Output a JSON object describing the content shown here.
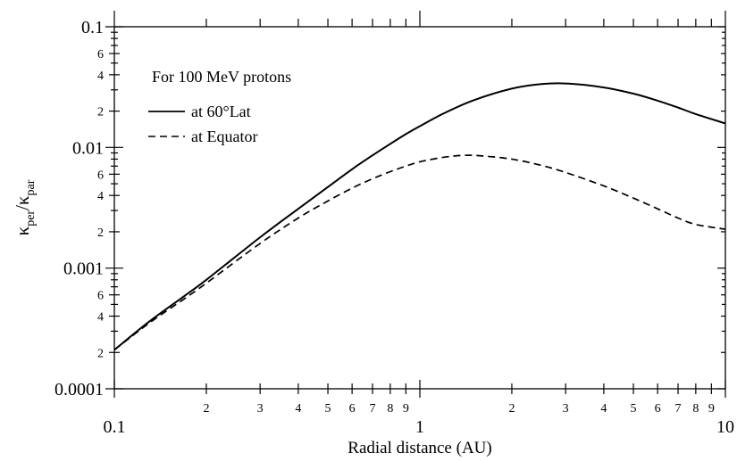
{
  "chart_data": {
    "type": "line",
    "title": "",
    "xlabel": "Radial distance (AU)",
    "ylabel_main": "κ",
    "ylabel_sub1": "per",
    "ylabel_slash": "/κ",
    "ylabel_sub2": "par",
    "xscale": "log",
    "yscale": "log",
    "xlim": [
      0.1,
      10
    ],
    "ylim": [
      0.0001,
      0.1
    ],
    "grid": false,
    "x_major_ticks": [
      {
        "value": 0.1,
        "label": "0.1"
      },
      {
        "value": 1,
        "label": "1"
      },
      {
        "value": 10,
        "label": "10"
      }
    ],
    "x_minor_ticks": [
      {
        "value": 0.2,
        "label": "2"
      },
      {
        "value": 0.3,
        "label": "3"
      },
      {
        "value": 0.4,
        "label": "4"
      },
      {
        "value": 0.5,
        "label": "5"
      },
      {
        "value": 0.6,
        "label": "6"
      },
      {
        "value": 0.7,
        "label": "7"
      },
      {
        "value": 0.8,
        "label": "8"
      },
      {
        "value": 0.9,
        "label": "9"
      },
      {
        "value": 2,
        "label": "2"
      },
      {
        "value": 3,
        "label": "3"
      },
      {
        "value": 4,
        "label": "4"
      },
      {
        "value": 5,
        "label": "5"
      },
      {
        "value": 6,
        "label": "6"
      },
      {
        "value": 7,
        "label": "7"
      },
      {
        "value": 8,
        "label": "8"
      },
      {
        "value": 9,
        "label": "9"
      }
    ],
    "y_major_ticks": [
      {
        "value": 0.0001,
        "label": "0.0001"
      },
      {
        "value": 0.001,
        "label": "0.001"
      },
      {
        "value": 0.01,
        "label": "0.01"
      },
      {
        "value": 0.1,
        "label": "0.1"
      }
    ],
    "y_minor_ticks": [
      {
        "value": 0.0002,
        "label": "2"
      },
      {
        "value": 0.0004,
        "label": "4"
      },
      {
        "value": 0.0006,
        "label": "6"
      },
      {
        "value": 0.002,
        "label": "2"
      },
      {
        "value": 0.004,
        "label": "4"
      },
      {
        "value": 0.006,
        "label": "6"
      },
      {
        "value": 0.02,
        "label": "2"
      },
      {
        "value": 0.04,
        "label": "4"
      },
      {
        "value": 0.06,
        "label": "6"
      }
    ],
    "annotation": "For 100 MeV protons",
    "legend_position": "top-left",
    "series": [
      {
        "name": "at 60°Lat",
        "style": "solid",
        "color": "#000000",
        "x": [
          0.1,
          0.13,
          0.17,
          0.2,
          0.3,
          0.4,
          0.5,
          0.6,
          0.7,
          0.8,
          0.9,
          1.0,
          1.2,
          1.5,
          2.0,
          2.5,
          3.0,
          4.0,
          5.0,
          6.0,
          7.0,
          8.0,
          10.0
        ],
        "y": [
          0.00021,
          0.00036,
          0.00059,
          0.0008,
          0.0018,
          0.0031,
          0.0047,
          0.0066,
          0.0086,
          0.0107,
          0.0129,
          0.015,
          0.0192,
          0.0246,
          0.0307,
          0.0335,
          0.0339,
          0.0314,
          0.0279,
          0.0244,
          0.0214,
          0.0189,
          0.0158
        ]
      },
      {
        "name": "at Equator",
        "style": "dashed",
        "color": "#000000",
        "x": [
          0.1,
          0.13,
          0.17,
          0.2,
          0.3,
          0.4,
          0.5,
          0.6,
          0.7,
          0.8,
          0.9,
          1.0,
          1.2,
          1.4,
          1.6,
          2.0,
          2.5,
          3.0,
          4.0,
          5.0,
          6.0,
          7.0,
          8.0,
          10.0
        ],
        "y": [
          0.00021,
          0.00035,
          0.00056,
          0.00075,
          0.0016,
          0.0026,
          0.0036,
          0.0046,
          0.0055,
          0.0063,
          0.007,
          0.0076,
          0.0083,
          0.0086,
          0.0085,
          0.008,
          0.0071,
          0.0062,
          0.0048,
          0.0038,
          0.0031,
          0.0026,
          0.0023,
          0.0021
        ]
      }
    ]
  }
}
